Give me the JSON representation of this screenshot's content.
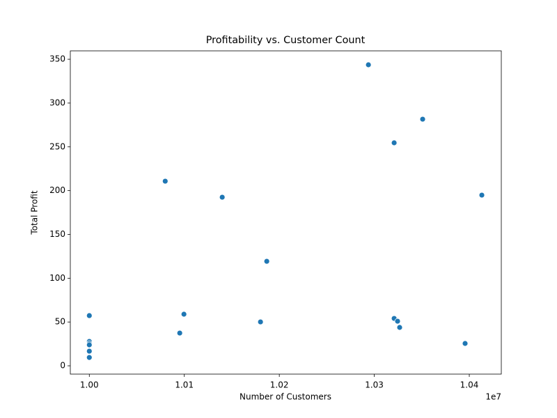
{
  "chart_data": {
    "type": "scatter",
    "title": "Profitability vs. Customer Count",
    "x_label": "Number of Customers",
    "y_label": "Total Profit",
    "x_scale_label": "1e7",
    "color": "#1f77b4",
    "x": [
      1.02938,
      1.03509,
      1.03209,
      1.00799,
      1.01399,
      1.04132,
      1.01868,
      1.00996,
      1.0,
      1.01802,
      1.03209,
      1.03245,
      1.03267,
      1.00952,
      1.03956,
      1.0,
      1.0,
      1.0,
      1.0,
      1.0
    ],
    "values": [
      343.7,
      281.6,
      254.6,
      210.8,
      192.5,
      194.9,
      119.3,
      58.9,
      57.3,
      50.1,
      54.1,
      50.9,
      43.8,
      37.4,
      25.5,
      27.8,
      25.5,
      23.9,
      16.7,
      9.5
    ],
    "xlim": [
      0.998,
      1.04337
    ],
    "ylim": [
      -9.5,
      359.6
    ],
    "xticks": [
      {
        "value": 1.0,
        "label": "1.00"
      },
      {
        "value": 1.01,
        "label": "1.01"
      },
      {
        "value": 1.02,
        "label": "1.02"
      },
      {
        "value": 1.03,
        "label": "1.03"
      },
      {
        "value": 1.04,
        "label": "1.04"
      }
    ],
    "yticks": [
      0,
      50,
      100,
      150,
      200,
      250,
      300,
      350
    ]
  }
}
